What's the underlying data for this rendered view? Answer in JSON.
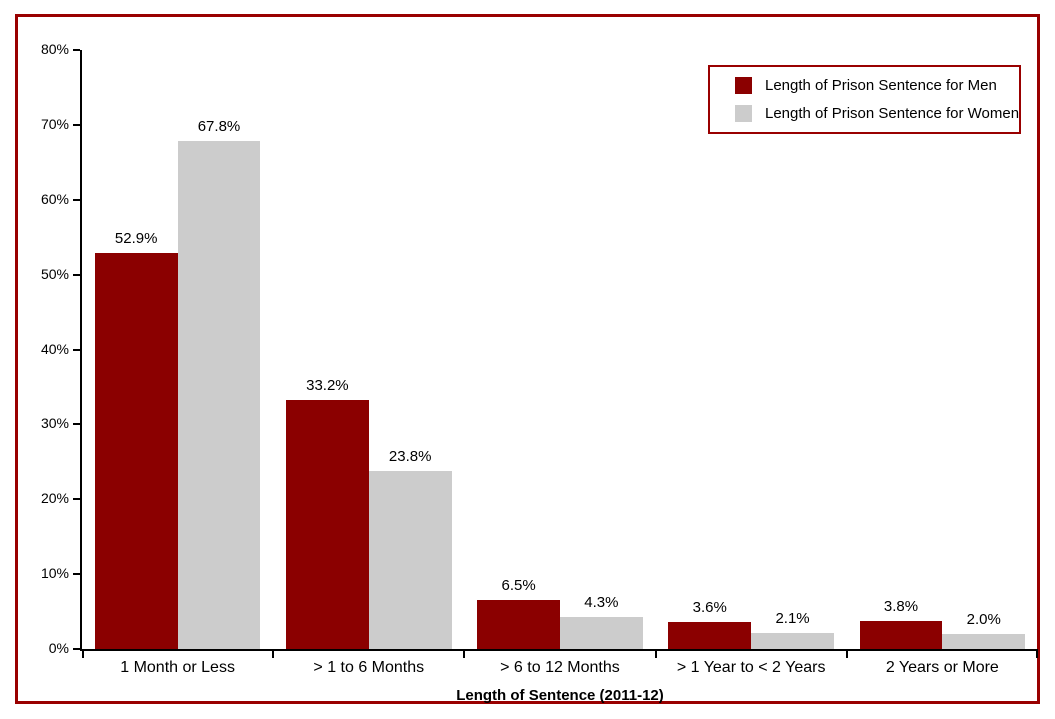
{
  "frame": {
    "border_color": "#990000"
  },
  "chart_data": {
    "type": "bar",
    "title": "",
    "xlabel": "Length of Sentence (2011-12)",
    "ylabel": "",
    "ylim": [
      0,
      80
    ],
    "ytick_labels": [
      "0%",
      "10%",
      "20%",
      "30%",
      "40%",
      "50%",
      "60%",
      "70%",
      "80%"
    ],
    "grid": false,
    "legend_position": "top-right",
    "categories": [
      "1 Month or Less",
      "> 1 to 6 Months",
      "> 6 to 12 Months",
      "> 1 Year to < 2 Years",
      "2 Years or More"
    ],
    "series": [
      {
        "name": "Length of Prison Sentence for Men",
        "color": "#8B0000",
        "values": [
          52.9,
          33.2,
          6.5,
          3.6,
          3.8
        ],
        "labels": [
          "52.9%",
          "33.2%",
          "6.5%",
          "3.6%",
          "3.8%"
        ]
      },
      {
        "name": "Length of Prison Sentence for Women",
        "color": "#CCCCCC",
        "values": [
          67.8,
          23.8,
          4.3,
          2.1,
          2.0
        ],
        "labels": [
          "67.8%",
          "23.8%",
          "4.3%",
          "2.1%",
          "2.0%"
        ]
      }
    ]
  }
}
